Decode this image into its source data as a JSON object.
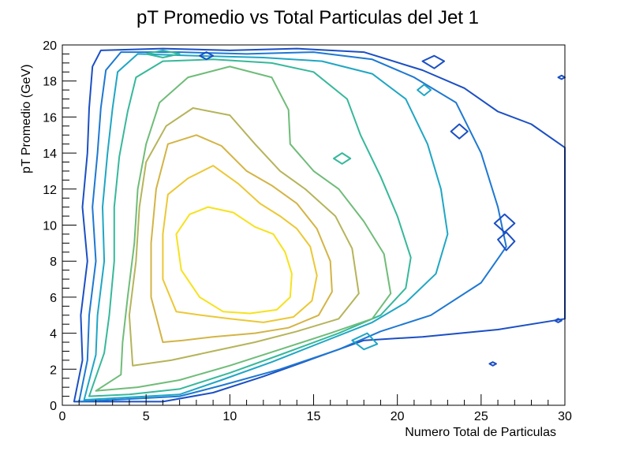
{
  "chart_data": {
    "type": "contour",
    "title": "pT Promedio vs Total Particulas del Jet 1",
    "xlabel": "Numero Total de Particulas",
    "ylabel": "pT Promedio (GeV)",
    "xlim": [
      0,
      30
    ],
    "ylim": [
      0,
      20
    ],
    "x_ticks": [
      0,
      5,
      10,
      15,
      20,
      25,
      30
    ],
    "y_ticks": [
      0,
      2,
      4,
      6,
      8,
      10,
      12,
      14,
      16,
      18,
      20
    ],
    "grid": false,
    "legend": "none",
    "contour_levels": [
      {
        "color": "#1b4fc4",
        "points": [
          [
            0.7,
            0.2
          ],
          [
            1.2,
            2.5
          ],
          [
            1.1,
            5
          ],
          [
            1.5,
            8
          ],
          [
            1.2,
            11
          ],
          [
            1.5,
            14
          ],
          [
            1.6,
            16.5
          ],
          [
            1.8,
            18.8
          ],
          [
            2.3,
            19.7
          ],
          [
            6,
            19.8
          ],
          [
            10,
            19.7
          ],
          [
            14,
            19.8
          ],
          [
            18,
            19.6
          ],
          [
            21.5,
            18.6
          ],
          [
            24,
            17.6
          ],
          [
            26,
            16.3
          ],
          [
            28,
            15.6
          ],
          [
            30,
            14.3
          ],
          [
            30,
            4.8
          ],
          [
            26,
            4.2
          ],
          [
            21.5,
            3.8
          ],
          [
            18,
            3.6
          ],
          [
            15,
            2.6
          ],
          [
            12,
            1.6
          ],
          [
            9,
            0.7
          ],
          [
            6,
            0.2
          ]
        ]
      },
      {
        "color": "#1e78d2",
        "points": [
          [
            1.0,
            0.2
          ],
          [
            1.5,
            2.5
          ],
          [
            1.6,
            5
          ],
          [
            2,
            8
          ],
          [
            1.8,
            11
          ],
          [
            2.1,
            14
          ],
          [
            2.3,
            16.5
          ],
          [
            2.6,
            18.6
          ],
          [
            3.5,
            19.6
          ],
          [
            7,
            19.6
          ],
          [
            11,
            19.5
          ],
          [
            15,
            19.6
          ],
          [
            18.5,
            19.2
          ],
          [
            21,
            18.2
          ],
          [
            23.5,
            16.8
          ],
          [
            25,
            14
          ],
          [
            26,
            11
          ],
          [
            26.5,
            8.8
          ],
          [
            25,
            6.8
          ],
          [
            22,
            5
          ],
          [
            19,
            4.1
          ],
          [
            16.5,
            3.1
          ],
          [
            13,
            2
          ],
          [
            9.5,
            1.1
          ],
          [
            7,
            0.5
          ]
        ]
      },
      {
        "color": "#1fa6c4",
        "points": [
          [
            1.3,
            0.3
          ],
          [
            2.0,
            2.8
          ],
          [
            2.1,
            5
          ],
          [
            2.5,
            8
          ],
          [
            2.4,
            11
          ],
          [
            2.7,
            14
          ],
          [
            3.0,
            16.5
          ],
          [
            3.3,
            18.5
          ],
          [
            4.5,
            19.5
          ],
          [
            8,
            19.4
          ],
          [
            12,
            19.3
          ],
          [
            15.5,
            19.1
          ],
          [
            18.5,
            18.4
          ],
          [
            20.5,
            17
          ],
          [
            21.8,
            14.5
          ],
          [
            22.6,
            12
          ],
          [
            23,
            9.5
          ],
          [
            22.3,
            7.3
          ],
          [
            20.5,
            5.7
          ],
          [
            18.5,
            4.6
          ],
          [
            15.5,
            3.5
          ],
          [
            12.5,
            2.4
          ],
          [
            9.5,
            1.4
          ],
          [
            7,
            0.6
          ]
        ]
      },
      {
        "color": "#36b89a",
        "points": [
          [
            1.6,
            0.5
          ],
          [
            2.5,
            2.9
          ],
          [
            2.8,
            5
          ],
          [
            3.1,
            8
          ],
          [
            3.1,
            11
          ],
          [
            3.4,
            13.8
          ],
          [
            3.9,
            16.3
          ],
          [
            4.4,
            18.2
          ],
          [
            6,
            19.1
          ],
          [
            9,
            19.2
          ],
          [
            12.5,
            19
          ],
          [
            15,
            18.5
          ],
          [
            17,
            17
          ],
          [
            17.8,
            15
          ],
          [
            19,
            12.7
          ],
          [
            20,
            10.5
          ],
          [
            20.8,
            8.2
          ],
          [
            20.5,
            6.5
          ],
          [
            19,
            5
          ],
          [
            16.5,
            4
          ],
          [
            13,
            2.8
          ],
          [
            10,
            1.8
          ],
          [
            7,
            0.9
          ],
          [
            4,
            0.6
          ]
        ]
      },
      {
        "color": "#6fbc78",
        "points": [
          [
            2.0,
            0.8
          ],
          [
            3.5,
            1.7
          ],
          [
            3.6,
            3.5
          ],
          [
            3.9,
            6
          ],
          [
            4.3,
            9
          ],
          [
            4.5,
            12
          ],
          [
            5,
            14.5
          ],
          [
            5.8,
            16.8
          ],
          [
            7.5,
            18.2
          ],
          [
            10,
            18.8
          ],
          [
            12.5,
            18.2
          ],
          [
            13.5,
            16.4
          ],
          [
            13.6,
            14.5
          ],
          [
            15,
            13
          ],
          [
            16.5,
            12
          ],
          [
            18,
            10.2
          ],
          [
            19.2,
            8.4
          ],
          [
            19.6,
            6.2
          ],
          [
            18.5,
            4.8
          ],
          [
            16,
            4
          ],
          [
            13,
            3.1
          ],
          [
            10,
            2.2
          ],
          [
            7,
            1.4
          ],
          [
            4.5,
            1
          ]
        ]
      },
      {
        "color": "#b5b45a",
        "points": [
          [
            4.2,
            2.2
          ],
          [
            4.0,
            5
          ],
          [
            4.4,
            8
          ],
          [
            4.6,
            11
          ],
          [
            5.0,
            13.5
          ],
          [
            6.2,
            15.5
          ],
          [
            7.8,
            16.5
          ],
          [
            10,
            16.1
          ],
          [
            11.5,
            14.5
          ],
          [
            13,
            13
          ],
          [
            14.5,
            12
          ],
          [
            16.3,
            10.5
          ],
          [
            17.3,
            8.7
          ],
          [
            17.7,
            6.2
          ],
          [
            16.5,
            4.8
          ],
          [
            14,
            4.1
          ],
          [
            11.5,
            3.5
          ],
          [
            9,
            3
          ],
          [
            6.5,
            2.5
          ]
        ]
      },
      {
        "color": "#d3b445",
        "points": [
          [
            6.0,
            3.5
          ],
          [
            5.3,
            6
          ],
          [
            5.3,
            9
          ],
          [
            5.6,
            12
          ],
          [
            6.3,
            14.5
          ],
          [
            8,
            15
          ],
          [
            9.5,
            14.4
          ],
          [
            11,
            13
          ],
          [
            12.5,
            12.2
          ],
          [
            14,
            11.2
          ],
          [
            15.2,
            9.8
          ],
          [
            16.0,
            8
          ],
          [
            16.1,
            6.3
          ],
          [
            15.3,
            5
          ],
          [
            13.5,
            4.3
          ],
          [
            11.5,
            4.0
          ],
          [
            9,
            3.8
          ],
          [
            7.2,
            3.6
          ]
        ]
      },
      {
        "color": "#ecc835",
        "points": [
          [
            6.8,
            5.2
          ],
          [
            6.0,
            7
          ],
          [
            6.0,
            9.5
          ],
          [
            6.3,
            11.7
          ],
          [
            7.5,
            12.6
          ],
          [
            9,
            13.3
          ],
          [
            10.5,
            12.3
          ],
          [
            11.8,
            11.2
          ],
          [
            13,
            10.5
          ],
          [
            14,
            9.8
          ],
          [
            14.8,
            8.8
          ],
          [
            15.2,
            7.2
          ],
          [
            14.9,
            5.8
          ],
          [
            13.8,
            4.9
          ],
          [
            12,
            4.6
          ],
          [
            10,
            4.8
          ],
          [
            8.3,
            5
          ]
        ]
      },
      {
        "color": "#f6e21d",
        "points": [
          [
            8.2,
            6
          ],
          [
            7.1,
            7.5
          ],
          [
            6.8,
            9.5
          ],
          [
            7.6,
            10.6
          ],
          [
            8.7,
            11
          ],
          [
            10.2,
            10.7
          ],
          [
            11.5,
            9.9
          ],
          [
            12.6,
            9.5
          ],
          [
            13.3,
            8.5
          ],
          [
            13.7,
            7.3
          ],
          [
            13.6,
            6
          ],
          [
            12.8,
            5.3
          ],
          [
            11.2,
            5.1
          ],
          [
            9.6,
            5.2
          ]
        ]
      }
    ],
    "islands": [
      {
        "color": "#1b4fc4",
        "points": [
          [
            8.2,
            19.4
          ],
          [
            8.6,
            19.6
          ],
          [
            9.0,
            19.4
          ],
          [
            8.6,
            19.2
          ]
        ]
      },
      {
        "color": "#1b4fc4",
        "points": [
          [
            21.5,
            19.1
          ],
          [
            22.2,
            19.4
          ],
          [
            22.8,
            19.1
          ],
          [
            22.2,
            18.7
          ]
        ]
      },
      {
        "color": "#1b4fc4",
        "points": [
          [
            23.2,
            15.2
          ],
          [
            23.7,
            15.6
          ],
          [
            24.2,
            15.2
          ],
          [
            23.7,
            14.8
          ]
        ]
      },
      {
        "color": "#1b4fc4",
        "points": [
          [
            25.8,
            10.1
          ],
          [
            26.4,
            10.6
          ],
          [
            27.0,
            10.1
          ],
          [
            26.4,
            9.6
          ]
        ]
      },
      {
        "color": "#1b4fc4",
        "points": [
          [
            26.0,
            9.2
          ],
          [
            26.5,
            9.6
          ],
          [
            27.0,
            9.1
          ],
          [
            26.5,
            8.6
          ]
        ]
      },
      {
        "color": "#1fa6c4",
        "points": [
          [
            17.3,
            3.6
          ],
          [
            18.2,
            4.0
          ],
          [
            18.8,
            3.4
          ],
          [
            18.0,
            3.1
          ]
        ]
      },
      {
        "color": "#1fa6c4",
        "points": [
          [
            21.2,
            17.5
          ],
          [
            21.6,
            17.8
          ],
          [
            22.0,
            17.5
          ],
          [
            21.6,
            17.2
          ]
        ]
      },
      {
        "color": "#36b89a",
        "points": [
          [
            16.2,
            13.7
          ],
          [
            16.7,
            14.0
          ],
          [
            17.2,
            13.7
          ],
          [
            16.7,
            13.4
          ]
        ]
      },
      {
        "color": "#36b89a",
        "points": [
          [
            5.0,
            19.5
          ],
          [
            6.0,
            19.7
          ],
          [
            7.0,
            19.5
          ],
          [
            6.0,
            19.3
          ]
        ]
      },
      {
        "color": "#1b4fc4",
        "points": [
          [
            25.5,
            2.3
          ],
          [
            25.7,
            2.4
          ],
          [
            25.9,
            2.3
          ],
          [
            25.7,
            2.2
          ]
        ]
      },
      {
        "color": "#1b4fc4",
        "points": [
          [
            29.4,
            4.7
          ],
          [
            29.6,
            4.8
          ],
          [
            29.8,
            4.7
          ],
          [
            29.6,
            4.6
          ]
        ]
      },
      {
        "color": "#1b4fc4",
        "points": [
          [
            29.6,
            18.2
          ],
          [
            29.8,
            18.3
          ],
          [
            30.0,
            18.2
          ],
          [
            29.8,
            18.1
          ]
        ]
      }
    ]
  }
}
